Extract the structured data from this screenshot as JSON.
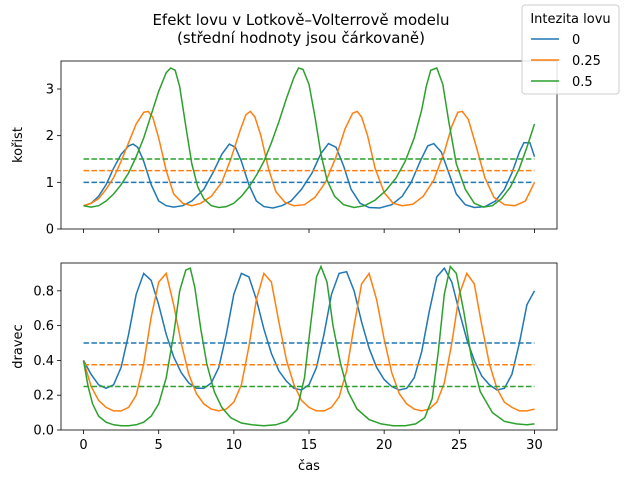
{
  "chart_data": {
    "type": "line",
    "title": "Efekt lovu v Lotkově–Volterrově modelu\n(střední hodnoty jsou čárkovaně)",
    "title_lines": [
      "Efekt lovu v Lotkově–Volterrově modelu",
      "(střední hodnoty jsou čárkovaně)"
    ],
    "xlabel": "čas",
    "xlim": [
      0,
      30
    ],
    "xticks": [
      0,
      5,
      10,
      15,
      20,
      25,
      30
    ],
    "legend": {
      "title": "Intezita lovu",
      "placement": "top-right",
      "entries": [
        "0",
        "0.25",
        "0.5"
      ]
    },
    "colors": [
      "#1f77b4",
      "#ff7f0e",
      "#2ca02c"
    ],
    "grid": false,
    "panels": [
      {
        "name": "prey",
        "ylabel": "kořist",
        "ylim": [
          0,
          3.6
        ],
        "yticks": [
          0,
          1,
          2,
          3
        ],
        "series": [
          {
            "name": "0",
            "mean": 1.0,
            "x": [
              0,
              0.5,
              1,
              1.5,
              2,
              2.5,
              3,
              3.3,
              3.6,
              4,
              4.5,
              5,
              5.5,
              6,
              6.6,
              7.2,
              8,
              8.6,
              9.2,
              9.7,
              10.1,
              10.5,
              11,
              11.5,
              12,
              12.6,
              13.2,
              13.8,
              14.5,
              15.2,
              15.8,
              16.3,
              16.8,
              17.3,
              17.8,
              18.4,
              19,
              19.7,
              20.5,
              21.2,
              21.8,
              22.4,
              22.9,
              23.3,
              23.8,
              24.3,
              24.8,
              25.4,
              26,
              26.7,
              27.4,
              28,
              28.5,
              29,
              29.3,
              29.7,
              30
            ],
            "y": [
              0.5,
              0.55,
              0.7,
              0.95,
              1.3,
              1.6,
              1.78,
              1.82,
              1.75,
              1.45,
              0.95,
              0.6,
              0.5,
              0.47,
              0.5,
              0.6,
              0.85,
              1.2,
              1.6,
              1.82,
              1.75,
              1.45,
              0.95,
              0.6,
              0.48,
              0.45,
              0.5,
              0.6,
              0.85,
              1.2,
              1.62,
              1.83,
              1.75,
              1.35,
              0.85,
              0.55,
              0.46,
              0.45,
              0.52,
              0.7,
              1.0,
              1.45,
              1.78,
              1.83,
              1.65,
              1.2,
              0.75,
              0.52,
              0.46,
              0.48,
              0.6,
              0.85,
              1.2,
              1.65,
              1.85,
              1.85,
              1.55
            ]
          },
          {
            "name": "0.25",
            "mean": 1.25,
            "x": [
              0,
              0.5,
              1,
              1.5,
              2,
              2.5,
              3,
              3.5,
              4,
              4.3,
              4.6,
              5,
              5.5,
              6,
              6.6,
              7.2,
              7.8,
              8.5,
              9.2,
              9.8,
              10.4,
              10.8,
              11.1,
              11.4,
              11.8,
              12.3,
              12.8,
              13.4,
              14,
              14.7,
              15.4,
              16.1,
              16.8,
              17.4,
              17.9,
              18.2,
              18.5,
              18.9,
              19.4,
              20,
              20.6,
              21.2,
              21.9,
              22.6,
              23.3,
              24,
              24.5,
              24.9,
              25.2,
              25.6,
              26.1,
              26.7,
              27.3,
              28,
              28.7,
              29.4,
              30
            ],
            "y": [
              0.5,
              0.55,
              0.65,
              0.85,
              1.1,
              1.45,
              1.85,
              2.25,
              2.5,
              2.52,
              2.4,
              1.95,
              1.25,
              0.75,
              0.55,
              0.5,
              0.55,
              0.7,
              1.0,
              1.5,
              2.1,
              2.45,
              2.52,
              2.4,
              2.0,
              1.3,
              0.8,
              0.57,
              0.5,
              0.52,
              0.68,
              1.0,
              1.55,
              2.15,
              2.48,
              2.52,
              2.4,
              2.0,
              1.3,
              0.78,
              0.55,
              0.5,
              0.53,
              0.7,
              1.05,
              1.65,
              2.2,
              2.5,
              2.52,
              2.35,
              1.8,
              1.1,
              0.68,
              0.52,
              0.5,
              0.6,
              1.0
            ]
          },
          {
            "name": "0.5",
            "mean": 1.5,
            "x": [
              0,
              0.5,
              1,
              1.5,
              2,
              2.5,
              3,
              3.5,
              4,
              4.5,
              5,
              5.5,
              5.8,
              6.1,
              6.4,
              6.8,
              7.2,
              7.6,
              8,
              8.5,
              9,
              9.5,
              10,
              10.5,
              11,
              11.5,
              12,
              12.5,
              13,
              13.5,
              14,
              14.3,
              14.6,
              15,
              15.4,
              15.8,
              16.2,
              16.7,
              17.3,
              18,
              18.7,
              19.4,
              20.1,
              20.8,
              21.4,
              22,
              22.5,
              22.8,
              23.1,
              23.5,
              23.9,
              24.3,
              24.8,
              25.4,
              26,
              26.6,
              27.2,
              27.8,
              28.4,
              29,
              29.5,
              30
            ],
            "y": [
              0.5,
              0.47,
              0.5,
              0.6,
              0.75,
              0.95,
              1.2,
              1.55,
              1.95,
              2.45,
              2.95,
              3.35,
              3.45,
              3.4,
              3.05,
              2.2,
              1.4,
              0.9,
              0.65,
              0.5,
              0.46,
              0.48,
              0.55,
              0.7,
              0.9,
              1.15,
              1.45,
              1.85,
              2.3,
              2.8,
              3.25,
              3.45,
              3.42,
              3.1,
              2.4,
              1.6,
              1.05,
              0.7,
              0.52,
              0.46,
              0.5,
              0.62,
              0.82,
              1.1,
              1.45,
              1.95,
              2.55,
              3.05,
              3.4,
              3.45,
              3.1,
              2.3,
              1.4,
              0.85,
              0.55,
              0.47,
              0.5,
              0.65,
              0.9,
              1.3,
              1.75,
              2.25
            ]
          }
        ]
      },
      {
        "name": "predator",
        "ylabel": "dravec",
        "ylim": [
          0,
          0.96
        ],
        "yticks": [
          0.0,
          0.2,
          0.4,
          0.6,
          0.8
        ],
        "ytick_labels": [
          "0.0",
          "0.2",
          "0.4",
          "0.6",
          "0.8"
        ],
        "series": [
          {
            "name": "0",
            "mean": 0.5,
            "x": [
              0,
              0.5,
              1,
              1.5,
              2,
              2.5,
              3,
              3.5,
              4,
              4.5,
              5,
              5.5,
              6,
              6.5,
              7,
              7.5,
              8,
              8.5,
              9,
              9.5,
              10,
              10.5,
              11,
              11.5,
              12,
              12.5,
              13,
              13.5,
              14,
              14.5,
              15,
              15.5,
              16,
              16.5,
              17,
              17.5,
              18,
              18.5,
              19,
              19.5,
              20,
              20.5,
              21,
              21.5,
              22,
              22.5,
              23,
              23.5,
              24,
              24.5,
              25,
              25.5,
              26,
              26.5,
              27,
              27.5,
              28,
              28.5,
              29,
              29.5,
              30
            ],
            "y": [
              0.4,
              0.32,
              0.26,
              0.24,
              0.26,
              0.36,
              0.55,
              0.78,
              0.9,
              0.86,
              0.72,
              0.55,
              0.42,
              0.33,
              0.27,
              0.24,
              0.24,
              0.27,
              0.36,
              0.55,
              0.78,
              0.9,
              0.88,
              0.75,
              0.58,
              0.44,
              0.34,
              0.28,
              0.24,
              0.23,
              0.26,
              0.36,
              0.55,
              0.78,
              0.9,
              0.91,
              0.8,
              0.62,
              0.47,
              0.36,
              0.29,
              0.25,
              0.23,
              0.24,
              0.3,
              0.45,
              0.68,
              0.88,
              0.93,
              0.85,
              0.68,
              0.52,
              0.4,
              0.31,
              0.26,
              0.23,
              0.24,
              0.32,
              0.5,
              0.72,
              0.8
            ]
          },
          {
            "name": "0.25",
            "mean": 0.375,
            "x": [
              0,
              0.5,
              1,
              1.5,
              2,
              2.5,
              3,
              3.5,
              4,
              4.5,
              5,
              5.5,
              6,
              6.5,
              7,
              7.5,
              8,
              8.5,
              9,
              9.5,
              10,
              10.5,
              11,
              11.5,
              12,
              12.5,
              13,
              13.5,
              14,
              14.5,
              15,
              15.5,
              16,
              16.5,
              17,
              17.5,
              18,
              18.5,
              19,
              19.5,
              20,
              20.5,
              21,
              21.5,
              22,
              22.5,
              23,
              23.5,
              24,
              24.5,
              25,
              25.5,
              26,
              26.5,
              27,
              27.5,
              28,
              28.5,
              29,
              29.5,
              30
            ],
            "y": [
              0.4,
              0.25,
              0.17,
              0.13,
              0.11,
              0.11,
              0.13,
              0.2,
              0.38,
              0.65,
              0.85,
              0.9,
              0.72,
              0.5,
              0.32,
              0.21,
              0.15,
              0.12,
              0.11,
              0.12,
              0.16,
              0.26,
              0.48,
              0.75,
              0.9,
              0.85,
              0.62,
              0.4,
              0.26,
              0.17,
              0.13,
              0.11,
              0.11,
              0.13,
              0.19,
              0.34,
              0.6,
              0.84,
              0.9,
              0.75,
              0.52,
              0.33,
              0.21,
              0.15,
              0.12,
              0.11,
              0.12,
              0.16,
              0.27,
              0.5,
              0.78,
              0.9,
              0.84,
              0.6,
              0.38,
              0.24,
              0.16,
              0.13,
              0.11,
              0.11,
              0.12
            ]
          },
          {
            "name": "0.5",
            "mean": 0.25,
            "x": [
              0,
              0.3,
              0.6,
              1,
              1.5,
              2,
              2.5,
              3,
              3.5,
              4,
              4.5,
              5,
              5.5,
              6,
              6.4,
              6.8,
              7.1,
              7.4,
              7.8,
              8.2,
              8.7,
              9.2,
              9.8,
              10.5,
              11.2,
              12,
              12.8,
              13.5,
              14.2,
              14.7,
              15.1,
              15.5,
              15.8,
              16.2,
              16.6,
              17.1,
              17.6,
              18.2,
              19,
              19.8,
              20.6,
              21.4,
              22.1,
              22.7,
              23.2,
              23.6,
              24,
              24.4,
              24.8,
              25.3,
              25.8,
              26.4,
              27.2,
              28,
              28.8,
              29.5,
              30
            ],
            "y": [
              0.4,
              0.25,
              0.15,
              0.08,
              0.045,
              0.03,
              0.025,
              0.025,
              0.03,
              0.045,
              0.08,
              0.15,
              0.3,
              0.55,
              0.8,
              0.92,
              0.93,
              0.82,
              0.58,
              0.38,
              0.22,
              0.13,
              0.07,
              0.04,
              0.03,
              0.025,
              0.03,
              0.05,
              0.12,
              0.3,
              0.6,
              0.88,
              0.94,
              0.85,
              0.6,
              0.38,
              0.22,
              0.12,
              0.06,
              0.035,
              0.025,
              0.025,
              0.035,
              0.07,
              0.18,
              0.45,
              0.78,
              0.94,
              0.9,
              0.68,
              0.42,
              0.22,
              0.1,
              0.05,
              0.035,
              0.03,
              0.035
            ]
          }
        ]
      }
    ]
  }
}
